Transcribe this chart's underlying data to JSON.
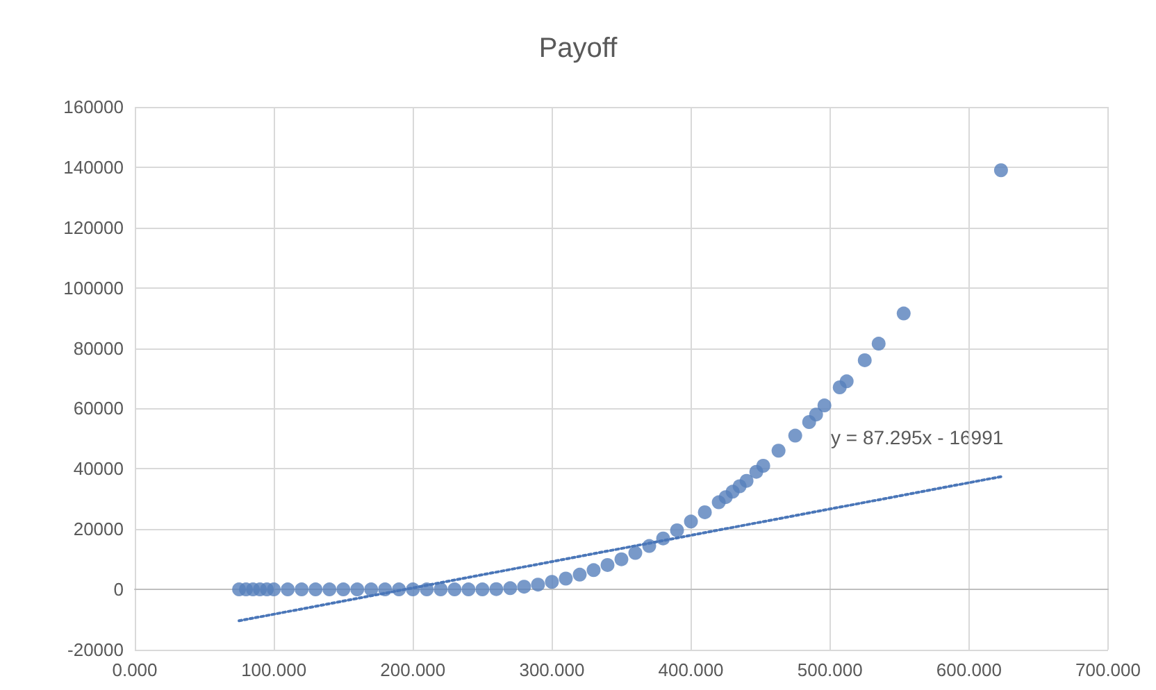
{
  "chart_data": {
    "type": "scatter",
    "title": "Payoff",
    "grid": true,
    "line_style": "dotted",
    "xlim": [
      0,
      700
    ],
    "ylim": [
      -20000,
      160000
    ],
    "xticks": [
      {
        "value": 0,
        "label": "0.000"
      },
      {
        "value": 100,
        "label": "100.000"
      },
      {
        "value": 200,
        "label": "200.000"
      },
      {
        "value": 300,
        "label": "300.000"
      },
      {
        "value": 400,
        "label": "400.000"
      },
      {
        "value": 500,
        "label": "500.000"
      },
      {
        "value": 600,
        "label": "600.000"
      },
      {
        "value": 700,
        "label": "700.000"
      }
    ],
    "yticks": [
      -20000,
      0,
      20000,
      40000,
      60000,
      80000,
      100000,
      120000,
      140000,
      160000
    ],
    "annotations": [
      "y = 87.295x - 16991"
    ],
    "series": [
      {
        "marker": "circle",
        "color": "#5680bb",
        "x": [
          75,
          80,
          85,
          90,
          95,
          100,
          110,
          120,
          130,
          140,
          150,
          160,
          170,
          180,
          190,
          200,
          210,
          220,
          230,
          240,
          250,
          260,
          270,
          280,
          290,
          300,
          310,
          320,
          330,
          340,
          350,
          360,
          370,
          380,
          390,
          400,
          410,
          420,
          425,
          430,
          435,
          440,
          447,
          452,
          463,
          475,
          485,
          490,
          496,
          507,
          512,
          525,
          535,
          553,
          623
        ],
        "values": [
          0,
          0,
          0,
          0,
          0,
          0,
          0,
          0,
          0,
          0,
          0,
          0,
          0,
          0,
          0,
          0,
          0,
          0,
          0,
          0,
          0,
          100,
          400,
          900,
          1600,
          2500,
          3600,
          4900,
          6400,
          8100,
          10000,
          12100,
          14400,
          16900,
          19600,
          22500,
          25600,
          28900,
          30600,
          32400,
          34200,
          36000,
          39000,
          41000,
          46000,
          51000,
          55500,
          58000,
          61000,
          67000,
          69000,
          76000,
          81500,
          91500,
          139000
        ]
      },
      {
        "type": "line",
        "marker": "none",
        "color": "#4a76b8",
        "x": [
          75,
          623
        ],
        "values": [
          -10400,
          37400
        ]
      }
    ]
  }
}
